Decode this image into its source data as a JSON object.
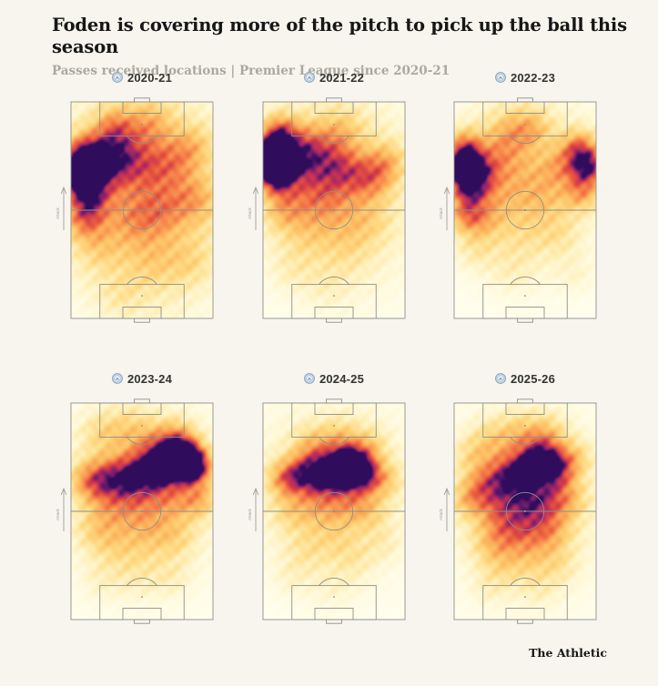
{
  "page": {
    "title": "Foden is covering more of the pitch to pick up the ball this season",
    "subtitle": "Passes received locations | Premier League since 2020-21",
    "footer_brand": "The Athletic",
    "background_color": "#f7f5ee"
  },
  "chart_data": {
    "type": "heatmap",
    "title": "Foden is covering more of the pitch to pick up the ball this season",
    "subtitle": "Passes received locations | Premier League since 2020-21",
    "layout": {
      "rows": 2,
      "cols": 3,
      "legend": "none",
      "grid": "off"
    },
    "pitch": {
      "orientation": "vertical",
      "attack_direction": "up",
      "direction_label": "Attack",
      "line_color": "#8f8f8a"
    },
    "club_badge_icon": "manchester-city-badge",
    "colormap": {
      "description": "density 0..1 -> cream, yellow, orange, red, magenta, dark indigo",
      "stops": [
        [
          0.0,
          255,
          255,
          243
        ],
        [
          0.1,
          255,
          250,
          221
        ],
        [
          0.22,
          254,
          238,
          180
        ],
        [
          0.35,
          254,
          219,
          133
        ],
        [
          0.47,
          253,
          196,
          104
        ],
        [
          0.58,
          250,
          163,
          85
        ],
        [
          0.68,
          244,
          122,
          72
        ],
        [
          0.76,
          230,
          85,
          62
        ],
        [
          0.84,
          202,
          53,
          80
        ],
        [
          0.9,
          155,
          36,
          105
        ],
        [
          0.95,
          98,
          26,
          108
        ],
        [
          1.0,
          47,
          12,
          92
        ]
      ]
    },
    "hotspot_format": [
      "x_fraction_from_left",
      "y_fraction_from_attacking_goal",
      "radius_fraction",
      "intensity"
    ],
    "panels": [
      {
        "season": "2020-21",
        "hotspots": [
          [
            0.07,
            0.33,
            0.09,
            1.05
          ],
          [
            0.1,
            0.24,
            0.1,
            0.55
          ],
          [
            0.12,
            0.44,
            0.1,
            0.5
          ],
          [
            0.22,
            0.3,
            0.12,
            0.45
          ],
          [
            0.1,
            0.55,
            0.1,
            0.35
          ],
          [
            0.33,
            0.22,
            0.12,
            0.32
          ],
          [
            0.3,
            0.11,
            0.1,
            0.3
          ],
          [
            0.55,
            0.1,
            0.12,
            0.26
          ],
          [
            0.5,
            0.3,
            0.13,
            0.22
          ],
          [
            0.72,
            0.28,
            0.12,
            0.22
          ],
          [
            0.86,
            0.2,
            0.1,
            0.2
          ],
          [
            0.88,
            0.45,
            0.11,
            0.22
          ],
          [
            0.65,
            0.5,
            0.12,
            0.18
          ],
          [
            0.45,
            0.55,
            0.12,
            0.15
          ],
          [
            0.2,
            0.68,
            0.1,
            0.12
          ],
          [
            0.6,
            0.75,
            0.12,
            0.1
          ],
          [
            0.85,
            0.75,
            0.1,
            0.12
          ],
          [
            0.35,
            0.9,
            0.1,
            0.09
          ],
          [
            0.5,
            0.22,
            0.45,
            0.2
          ],
          [
            0.35,
            0.48,
            0.4,
            0.16
          ],
          [
            0.7,
            0.45,
            0.38,
            0.14
          ],
          [
            0.5,
            0.68,
            0.42,
            0.1
          ],
          [
            0.6,
            0.85,
            0.35,
            0.06
          ]
        ]
      },
      {
        "season": "2021-22",
        "hotspots": [
          [
            0.04,
            0.28,
            0.085,
            1.1
          ],
          [
            0.08,
            0.21,
            0.09,
            0.6
          ],
          [
            0.1,
            0.36,
            0.09,
            0.52
          ],
          [
            0.2,
            0.28,
            0.11,
            0.45
          ],
          [
            0.12,
            0.13,
            0.09,
            0.42
          ],
          [
            0.3,
            0.2,
            0.12,
            0.35
          ],
          [
            0.45,
            0.28,
            0.12,
            0.3
          ],
          [
            0.6,
            0.33,
            0.12,
            0.3
          ],
          [
            0.78,
            0.35,
            0.11,
            0.34
          ],
          [
            0.88,
            0.27,
            0.1,
            0.26
          ],
          [
            0.55,
            0.14,
            0.12,
            0.24
          ],
          [
            0.35,
            0.42,
            0.12,
            0.25
          ],
          [
            0.15,
            0.5,
            0.1,
            0.28
          ],
          [
            0.5,
            0.5,
            0.15,
            0.18
          ],
          [
            0.75,
            0.55,
            0.12,
            0.14
          ],
          [
            0.3,
            0.62,
            0.12,
            0.12
          ],
          [
            0.6,
            0.68,
            0.12,
            0.1
          ],
          [
            0.2,
            0.78,
            0.1,
            0.08
          ],
          [
            0.45,
            0.85,
            0.12,
            0.07
          ],
          [
            0.5,
            0.26,
            0.45,
            0.2
          ],
          [
            0.4,
            0.52,
            0.4,
            0.13
          ],
          [
            0.65,
            0.75,
            0.38,
            0.06
          ]
        ]
      },
      {
        "season": "2022-23",
        "hotspots": [
          [
            0.06,
            0.3,
            0.09,
            0.95
          ],
          [
            0.1,
            0.4,
            0.09,
            0.55
          ],
          [
            0.08,
            0.2,
            0.085,
            0.45
          ],
          [
            0.18,
            0.33,
            0.1,
            0.4
          ],
          [
            0.08,
            0.52,
            0.09,
            0.4
          ],
          [
            0.2,
            0.55,
            0.1,
            0.24
          ],
          [
            0.95,
            0.3,
            0.09,
            0.72
          ],
          [
            0.88,
            0.21,
            0.09,
            0.48
          ],
          [
            0.9,
            0.42,
            0.09,
            0.38
          ],
          [
            0.75,
            0.3,
            0.1,
            0.28
          ],
          [
            0.4,
            0.14,
            0.12,
            0.28
          ],
          [
            0.56,
            0.12,
            0.1,
            0.24
          ],
          [
            0.3,
            0.25,
            0.12,
            0.24
          ],
          [
            0.5,
            0.35,
            0.14,
            0.18
          ],
          [
            0.65,
            0.45,
            0.12,
            0.17
          ],
          [
            0.3,
            0.45,
            0.12,
            0.18
          ],
          [
            0.15,
            0.68,
            0.1,
            0.14
          ],
          [
            0.5,
            0.6,
            0.14,
            0.12
          ],
          [
            0.75,
            0.62,
            0.1,
            0.12
          ],
          [
            0.4,
            0.78,
            0.12,
            0.09
          ],
          [
            0.85,
            0.8,
            0.1,
            0.08
          ],
          [
            0.5,
            0.26,
            0.45,
            0.18
          ],
          [
            0.5,
            0.56,
            0.4,
            0.1
          ]
        ]
      },
      {
        "season": "2023-24",
        "hotspots": [
          [
            0.8,
            0.26,
            0.09,
            1.0
          ],
          [
            0.88,
            0.3,
            0.09,
            0.58
          ],
          [
            0.68,
            0.29,
            0.1,
            0.6
          ],
          [
            0.55,
            0.32,
            0.11,
            0.5
          ],
          [
            0.4,
            0.34,
            0.11,
            0.45
          ],
          [
            0.25,
            0.35,
            0.11,
            0.4
          ],
          [
            0.12,
            0.36,
            0.1,
            0.34
          ],
          [
            0.75,
            0.17,
            0.1,
            0.38
          ],
          [
            0.6,
            0.2,
            0.11,
            0.3
          ],
          [
            0.9,
            0.45,
            0.09,
            0.34
          ],
          [
            0.7,
            0.45,
            0.11,
            0.28
          ],
          [
            0.45,
            0.47,
            0.12,
            0.24
          ],
          [
            0.25,
            0.5,
            0.11,
            0.22
          ],
          [
            0.55,
            0.6,
            0.12,
            0.2
          ],
          [
            0.3,
            0.65,
            0.11,
            0.17
          ],
          [
            0.75,
            0.62,
            0.1,
            0.17
          ],
          [
            0.15,
            0.6,
            0.09,
            0.14
          ],
          [
            0.45,
            0.78,
            0.12,
            0.11
          ],
          [
            0.7,
            0.8,
            0.1,
            0.1
          ],
          [
            0.2,
            0.82,
            0.1,
            0.08
          ],
          [
            0.4,
            0.12,
            0.12,
            0.22
          ],
          [
            0.2,
            0.14,
            0.1,
            0.18
          ],
          [
            0.5,
            0.32,
            0.45,
            0.18
          ],
          [
            0.5,
            0.62,
            0.4,
            0.1
          ]
        ]
      },
      {
        "season": "2024-25",
        "hotspots": [
          [
            0.62,
            0.29,
            0.09,
            0.95
          ],
          [
            0.52,
            0.31,
            0.09,
            0.55
          ],
          [
            0.7,
            0.33,
            0.09,
            0.5
          ],
          [
            0.42,
            0.33,
            0.1,
            0.5
          ],
          [
            0.28,
            0.33,
            0.1,
            0.48
          ],
          [
            0.15,
            0.35,
            0.09,
            0.38
          ],
          [
            0.35,
            0.2,
            0.1,
            0.28
          ],
          [
            0.55,
            0.17,
            0.1,
            0.26
          ],
          [
            0.75,
            0.2,
            0.09,
            0.24
          ],
          [
            0.85,
            0.35,
            0.09,
            0.28
          ],
          [
            0.6,
            0.45,
            0.11,
            0.28
          ],
          [
            0.4,
            0.47,
            0.11,
            0.24
          ],
          [
            0.2,
            0.5,
            0.1,
            0.2
          ],
          [
            0.75,
            0.5,
            0.1,
            0.2
          ],
          [
            0.5,
            0.62,
            0.12,
            0.14
          ],
          [
            0.3,
            0.68,
            0.1,
            0.12
          ],
          [
            0.65,
            0.72,
            0.1,
            0.11
          ],
          [
            0.2,
            0.8,
            0.1,
            0.08
          ],
          [
            0.5,
            0.85,
            0.12,
            0.07
          ],
          [
            0.85,
            0.65,
            0.09,
            0.1
          ],
          [
            0.5,
            0.3,
            0.45,
            0.17
          ],
          [
            0.45,
            0.6,
            0.4,
            0.09
          ]
        ]
      },
      {
        "season": "2025-26",
        "hotspots": [
          [
            0.62,
            0.26,
            0.1,
            0.58
          ],
          [
            0.72,
            0.31,
            0.1,
            0.5
          ],
          [
            0.5,
            0.3,
            0.11,
            0.4
          ],
          [
            0.35,
            0.33,
            0.11,
            0.38
          ],
          [
            0.2,
            0.38,
            0.1,
            0.33
          ],
          [
            0.1,
            0.45,
            0.09,
            0.26
          ],
          [
            0.45,
            0.42,
            0.12,
            0.34
          ],
          [
            0.62,
            0.45,
            0.11,
            0.34
          ],
          [
            0.8,
            0.45,
            0.1,
            0.28
          ],
          [
            0.3,
            0.5,
            0.11,
            0.28
          ],
          [
            0.55,
            0.55,
            0.12,
            0.28
          ],
          [
            0.4,
            0.6,
            0.11,
            0.26
          ],
          [
            0.7,
            0.6,
            0.1,
            0.23
          ],
          [
            0.25,
            0.65,
            0.1,
            0.2
          ],
          [
            0.55,
            0.7,
            0.11,
            0.18
          ],
          [
            0.35,
            0.75,
            0.1,
            0.16
          ],
          [
            0.75,
            0.75,
            0.09,
            0.13
          ],
          [
            0.6,
            0.85,
            0.1,
            0.1
          ],
          [
            0.25,
            0.85,
            0.09,
            0.09
          ],
          [
            0.45,
            0.14,
            0.11,
            0.25
          ],
          [
            0.65,
            0.14,
            0.1,
            0.27
          ],
          [
            0.25,
            0.17,
            0.1,
            0.2
          ],
          [
            0.85,
            0.25,
            0.09,
            0.22
          ],
          [
            0.12,
            0.24,
            0.09,
            0.18
          ],
          [
            0.5,
            0.35,
            0.45,
            0.17
          ],
          [
            0.5,
            0.65,
            0.4,
            0.11
          ]
        ]
      }
    ]
  }
}
